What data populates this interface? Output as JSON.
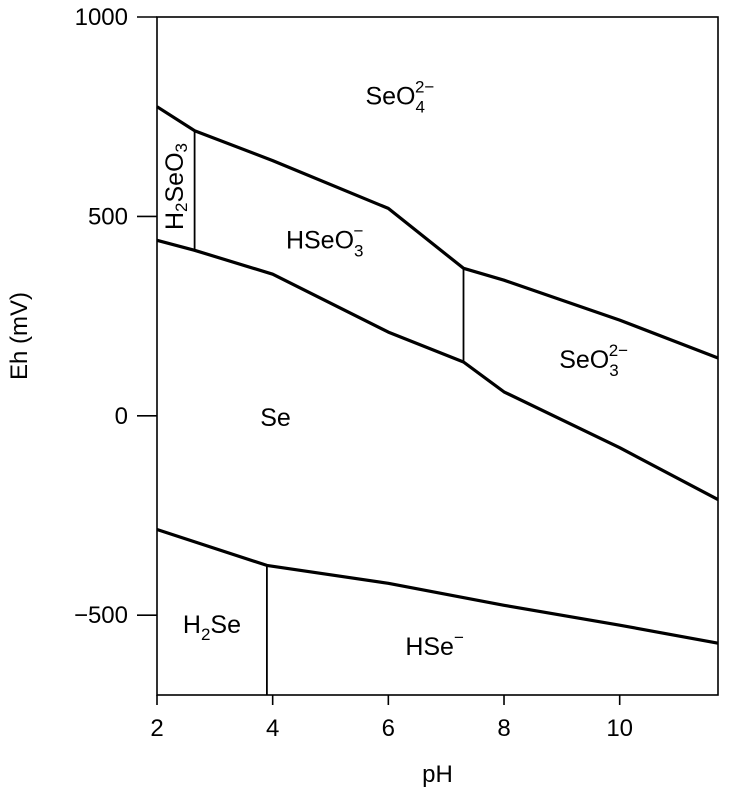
{
  "chart_data": {
    "type": "line",
    "title": "",
    "xlabel": "pH",
    "ylabel": "Eh (mV)",
    "xlim": [
      2,
      11.7
    ],
    "ylim": [
      -700,
      1000
    ],
    "x_ticks": [
      2,
      4,
      6,
      8,
      10
    ],
    "y_ticks": [
      1000,
      500,
      0,
      -500
    ],
    "y_tick_labels": [
      "1000",
      "500",
      "0",
      "−500"
    ],
    "x_tick_labels": [
      "2",
      "4",
      "6",
      "8",
      "10"
    ],
    "grid": false,
    "legend": "none",
    "boundaries": [
      {
        "points": [
          [
            2,
            775
          ],
          [
            2.65,
            715
          ],
          [
            4,
            640
          ],
          [
            6,
            520
          ],
          [
            7.3,
            370
          ],
          [
            8,
            340
          ],
          [
            10,
            240
          ],
          [
            11.7,
            145
          ]
        ]
      },
      {
        "points": [
          [
            2,
            440
          ],
          [
            2.65,
            415
          ],
          [
            4,
            355
          ],
          [
            6,
            210
          ],
          [
            7.3,
            135
          ],
          [
            8,
            60
          ],
          [
            10,
            -80
          ],
          [
            11.7,
            -210
          ]
        ]
      },
      {
        "points": [
          [
            2,
            -285
          ],
          [
            3.9,
            -375
          ],
          [
            6,
            -420
          ],
          [
            8,
            -475
          ],
          [
            10,
            -525
          ],
          [
            11.7,
            -570
          ]
        ]
      },
      {
        "points": [
          [
            2.65,
            715
          ],
          [
            2.65,
            415
          ]
        ]
      },
      {
        "points": [
          [
            7.3,
            370
          ],
          [
            7.3,
            135
          ]
        ]
      },
      {
        "points": [
          [
            3.9,
            -375
          ],
          [
            3.9,
            -700
          ]
        ]
      }
    ],
    "regions": [
      {
        "base": "SeO",
        "sub": "4",
        "sup": "2−",
        "x": 6.2,
        "y": 780
      },
      {
        "base": "H",
        "sub": "2",
        "rest": "SeO",
        "sub2": "3",
        "x": 2.33,
        "y": 575,
        "rotate": -90
      },
      {
        "base": "HSeO",
        "sub": "3",
        "sup": "−",
        "x": 4.9,
        "y": 420
      },
      {
        "base": "SeO",
        "sub": "3",
        "sup": "2−",
        "x": 9.55,
        "y": 120
      },
      {
        "base": "Se",
        "x": 4.05,
        "y": -25
      },
      {
        "base": "H",
        "sub": "2",
        "rest": "Se",
        "x": 2.95,
        "y": -545
      },
      {
        "base": "HSe",
        "sup": "−",
        "x": 6.8,
        "y": -600
      }
    ]
  }
}
